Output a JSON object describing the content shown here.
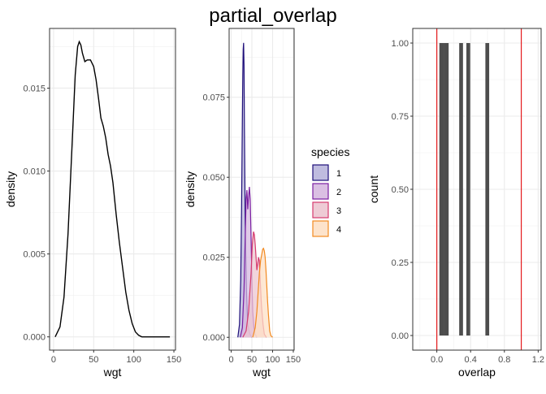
{
  "title": "partial_overlap",
  "chart_data": [
    {
      "type": "area",
      "xlabel": "wgt",
      "ylabel": "density",
      "xlim": [
        -5,
        152
      ],
      "ylim": [
        -0.0008,
        0.0186
      ],
      "xticks": [
        0,
        50,
        100,
        150
      ],
      "yticks": [
        0.0,
        0.005,
        0.01,
        0.015
      ],
      "yticklabels": [
        "0.000",
        "0.005",
        "0.010",
        "0.015"
      ],
      "grid": true,
      "series": [
        {
          "x": [
            2,
            8,
            13,
            18,
            23,
            27,
            30,
            32,
            34,
            36,
            39,
            42,
            46,
            50,
            53,
            56,
            59,
            62,
            65,
            68,
            71,
            74,
            78,
            82,
            86,
            90,
            94,
            98,
            102,
            106,
            110,
            145
          ],
          "y": [
            0.0,
            0.0006,
            0.0024,
            0.0062,
            0.0115,
            0.0158,
            0.0175,
            0.0178,
            0.0176,
            0.0171,
            0.0166,
            0.0167,
            0.0167,
            0.0163,
            0.0155,
            0.0144,
            0.0132,
            0.0127,
            0.012,
            0.011,
            0.0103,
            0.0093,
            0.0074,
            0.0057,
            0.0042,
            0.0027,
            0.0016,
            0.0008,
            0.0003,
            0.0001,
            0.0,
            0.0
          ]
        }
      ]
    },
    {
      "type": "area",
      "xlabel": "wgt",
      "ylabel": "density",
      "xlim": [
        -5,
        152
      ],
      "ylim": [
        -0.004,
        0.0965
      ],
      "xticks": [
        0,
        50,
        100,
        150
      ],
      "yticks": [
        0.0,
        0.025,
        0.05,
        0.075
      ],
      "yticklabels": [
        "0.000",
        "0.025",
        "0.050",
        "0.075"
      ],
      "grid": true,
      "legend": {
        "title": "species",
        "placement": "right"
      },
      "series": [
        {
          "name": "1",
          "color": "#1f0f7a",
          "fill": "#b8b5db",
          "x": [
            16,
            20,
            23,
            25,
            27,
            28,
            29,
            30,
            31,
            32,
            34,
            37,
            40,
            45,
            50
          ],
          "y": [
            0.0,
            0.004,
            0.018,
            0.04,
            0.068,
            0.082,
            0.09,
            0.092,
            0.085,
            0.065,
            0.035,
            0.014,
            0.004,
            0.001,
            0.0
          ]
        },
        {
          "name": "2",
          "color": "#7b1fa2",
          "fill": "#d6b8e0",
          "x": [
            22,
            27,
            31,
            34,
            36,
            38,
            40,
            42,
            44,
            46,
            48,
            50,
            52,
            55,
            58,
            62
          ],
          "y": [
            0.0,
            0.003,
            0.015,
            0.032,
            0.043,
            0.046,
            0.04,
            0.044,
            0.047,
            0.043,
            0.031,
            0.018,
            0.008,
            0.003,
            0.001,
            0.0
          ]
        },
        {
          "name": "3",
          "color": "#d63a6e",
          "fill": "#ecc5d0",
          "x": [
            28,
            36,
            42,
            48,
            51,
            54,
            56,
            58,
            60,
            62,
            64,
            66,
            68,
            70,
            73,
            77,
            80,
            85
          ],
          "y": [
            0.0,
            0.002,
            0.008,
            0.02,
            0.029,
            0.033,
            0.032,
            0.029,
            0.025,
            0.021,
            0.023,
            0.025,
            0.024,
            0.018,
            0.01,
            0.004,
            0.001,
            0.0
          ]
        },
        {
          "name": "4",
          "color": "#f28a20",
          "fill": "#fde0c5",
          "x": [
            52,
            58,
            62,
            65,
            68,
            71,
            74,
            76,
            78,
            80,
            82,
            84,
            86,
            88,
            90,
            93,
            96,
            100
          ],
          "y": [
            0.0,
            0.003,
            0.008,
            0.014,
            0.02,
            0.024,
            0.026,
            0.0275,
            0.0278,
            0.027,
            0.025,
            0.021,
            0.016,
            0.011,
            0.007,
            0.002,
            0.0005,
            0.0
          ]
        }
      ]
    },
    {
      "type": "bar",
      "xlabel": "overlap",
      "ylabel": "count",
      "xlim": [
        -0.285,
        1.235
      ],
      "ylim": [
        -0.05,
        1.05
      ],
      "xticks": [
        0.0,
        0.4,
        0.8,
        1.2
      ],
      "xticklabels": [
        "0.0",
        "0.4",
        "0.8",
        "1.2"
      ],
      "yticks": [
        0.0,
        0.25,
        0.5,
        0.75,
        1.0
      ],
      "yticklabels": [
        "0.00",
        "0.25",
        "0.50",
        "0.75",
        "1.00"
      ],
      "grid": true,
      "bar_color": "#4d4d4d",
      "bars": [
        {
          "x0": 0.03,
          "x1": 0.085,
          "count": 1
        },
        {
          "x0": 0.085,
          "x1": 0.14,
          "count": 1
        },
        {
          "x0": 0.265,
          "x1": 0.31,
          "count": 1
        },
        {
          "x0": 0.35,
          "x1": 0.395,
          "count": 1
        },
        {
          "x0": 0.575,
          "x1": 0.62,
          "count": 1
        }
      ],
      "reference_lines": {
        "color": "#e41a1c",
        "x": [
          0,
          1
        ]
      }
    }
  ]
}
